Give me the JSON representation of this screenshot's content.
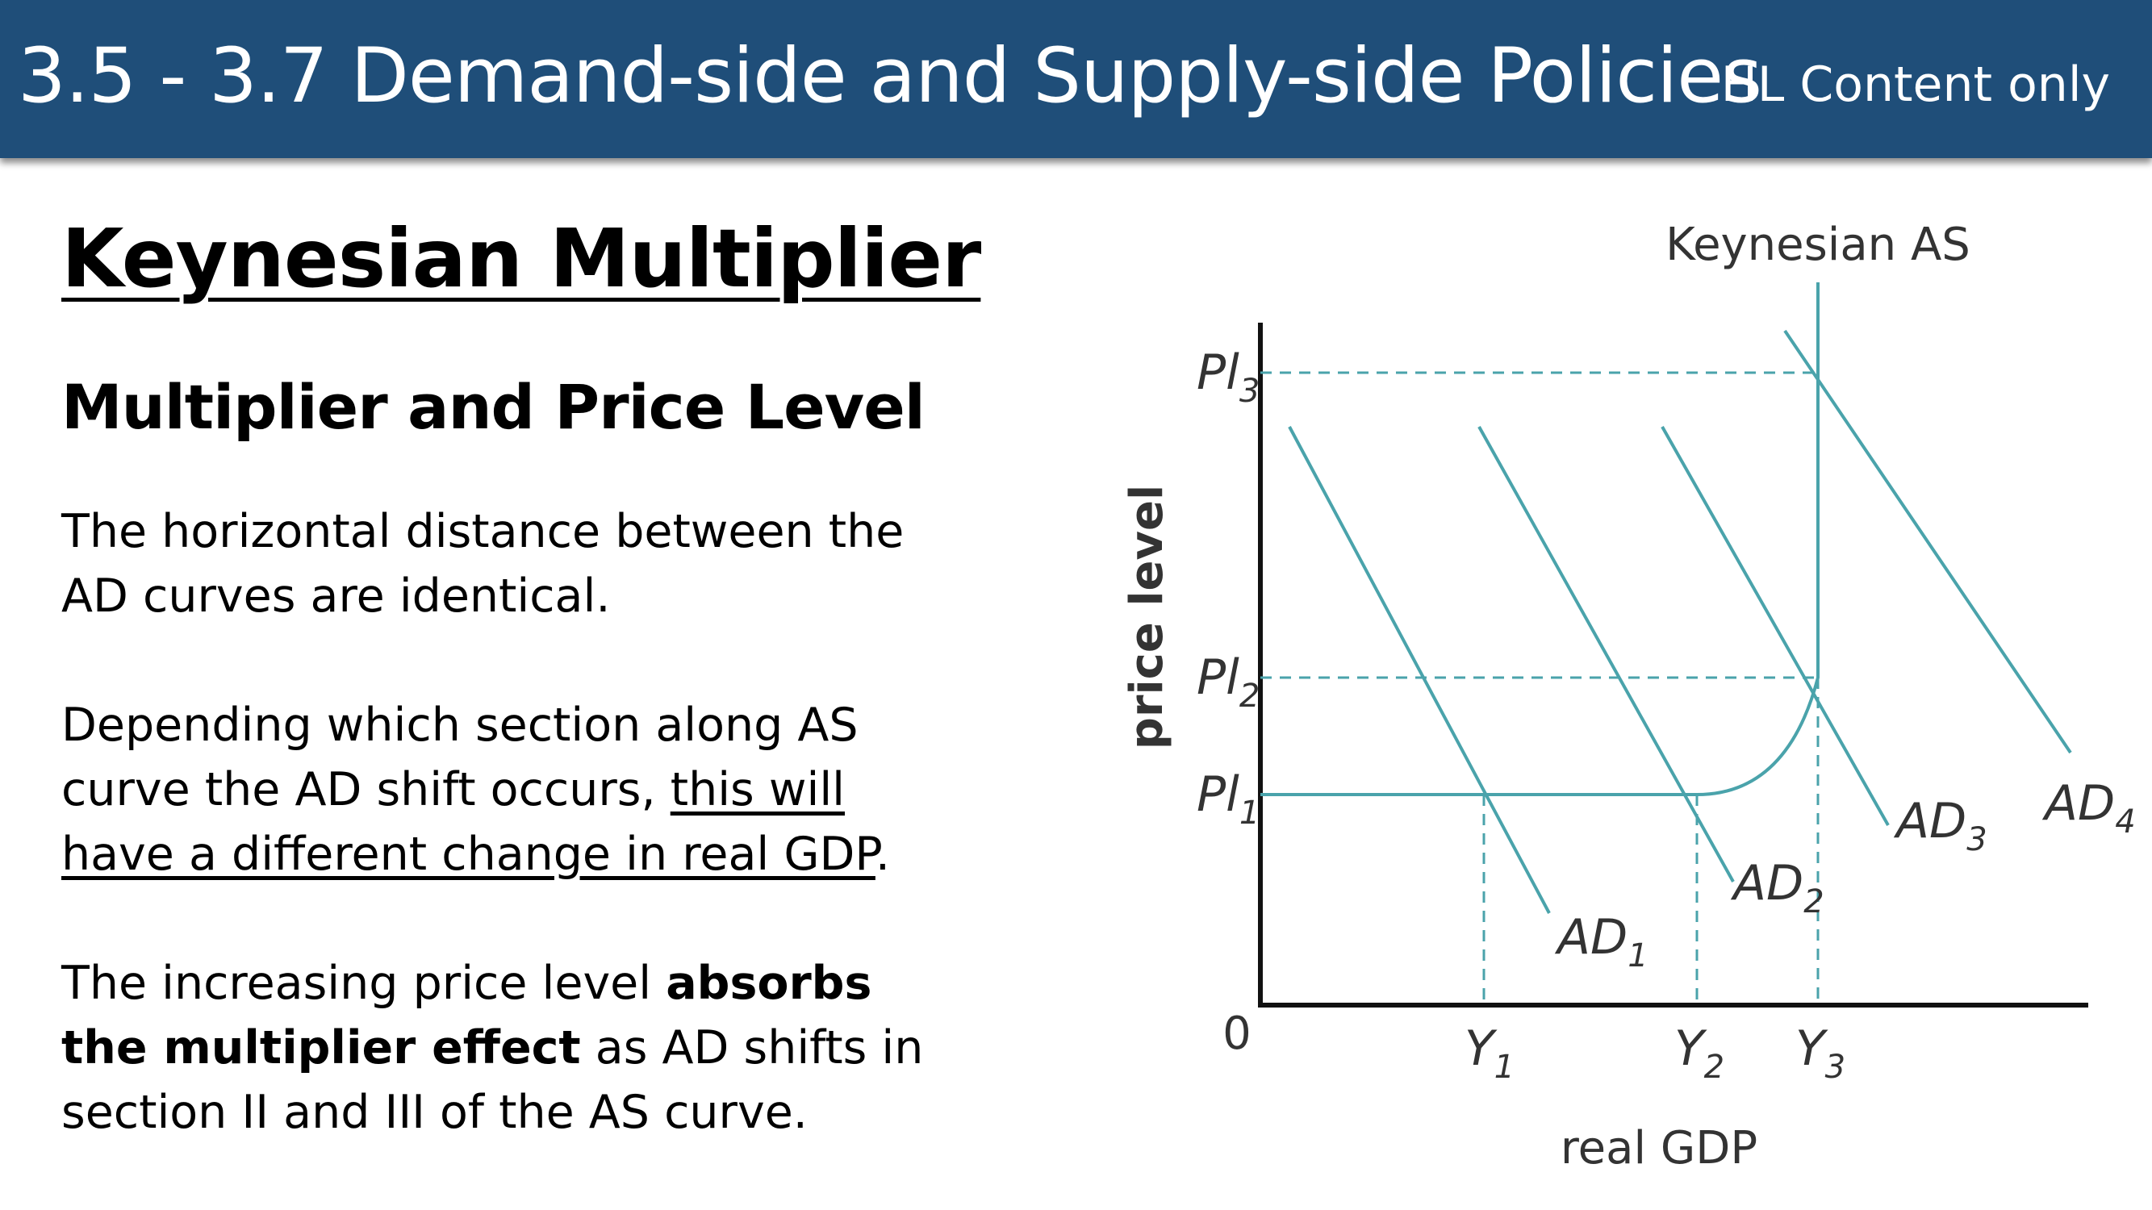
{
  "header": {
    "title": "3.5 - 3.7 Demand-side and Supply-side Policies",
    "tag": "HL Content only",
    "bg_color": "#1f4e79"
  },
  "slide": {
    "heading": "Keynesian Multiplier",
    "subheading": "Multiplier and Price Level",
    "p1": "The horizontal distance between the AD curves are identical.",
    "p2_plain": "Depending which section along AS curve the AD shift occurs, ",
    "p2_underlined": "this will have a different change in real GDP",
    "p2_end": ".",
    "p3_start": "The increasing price level ",
    "p3_bold": "absorbs the multiplier effect",
    "p3_end": " as AD shifts in section II and III of the AS curve."
  },
  "diagram": {
    "line_color": "#4aa3ab",
    "as_label": "Keynesian AS",
    "y_axis_label": "price level",
    "x_axis_label": "real GDP",
    "origin_label": "0",
    "price_levels": [
      {
        "main": "Pl",
        "sub": "1"
      },
      {
        "main": "Pl",
        "sub": "2"
      },
      {
        "main": "Pl",
        "sub": "3"
      }
    ],
    "outputs": [
      {
        "main": "Y",
        "sub": "1"
      },
      {
        "main": "Y",
        "sub": "2"
      },
      {
        "main": "Y",
        "sub": "3"
      }
    ],
    "ad_curves": [
      {
        "main": "AD",
        "sub": "1"
      },
      {
        "main": "AD",
        "sub": "2"
      },
      {
        "main": "AD",
        "sub": "3"
      },
      {
        "main": "AD",
        "sub": "4"
      }
    ]
  }
}
